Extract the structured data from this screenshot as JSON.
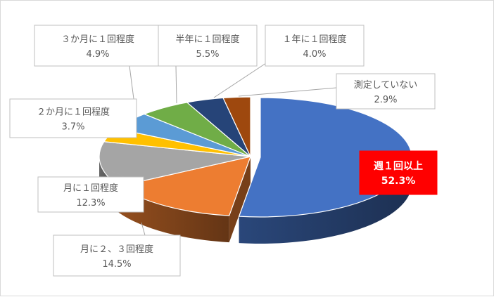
{
  "chart_data": {
    "type": "pie",
    "style": "3d-exploded",
    "slices": [
      {
        "label": "週１回以上",
        "value": 52.3,
        "display": "52.3%",
        "color": "#4472c4",
        "highlight": true
      },
      {
        "label": "月に２、３回程度",
        "value": 14.5,
        "display": "14.5%",
        "color": "#ed7d31"
      },
      {
        "label": "月に１回程度",
        "value": 12.3,
        "display": "12.3%",
        "color": "#a5a5a5"
      },
      {
        "label": "２か月に１回程度",
        "value": 3.7,
        "display": "3.7%",
        "color": "#ffc000"
      },
      {
        "label": "３か月に１回程度",
        "value": 4.9,
        "display": "4.9%",
        "color": "#5b9bd5"
      },
      {
        "label": "半年に１回程度",
        "value": 5.5,
        "display": "5.5%",
        "color": "#70ad47"
      },
      {
        "label": "１年に１回程度",
        "value": 4.0,
        "display": "4.0%",
        "color": "#264478"
      },
      {
        "label": "測定していない",
        "value": 2.9,
        "display": "2.9%",
        "color": "#9e480e"
      }
    ],
    "highlight_label_bg": "#ff0000"
  }
}
